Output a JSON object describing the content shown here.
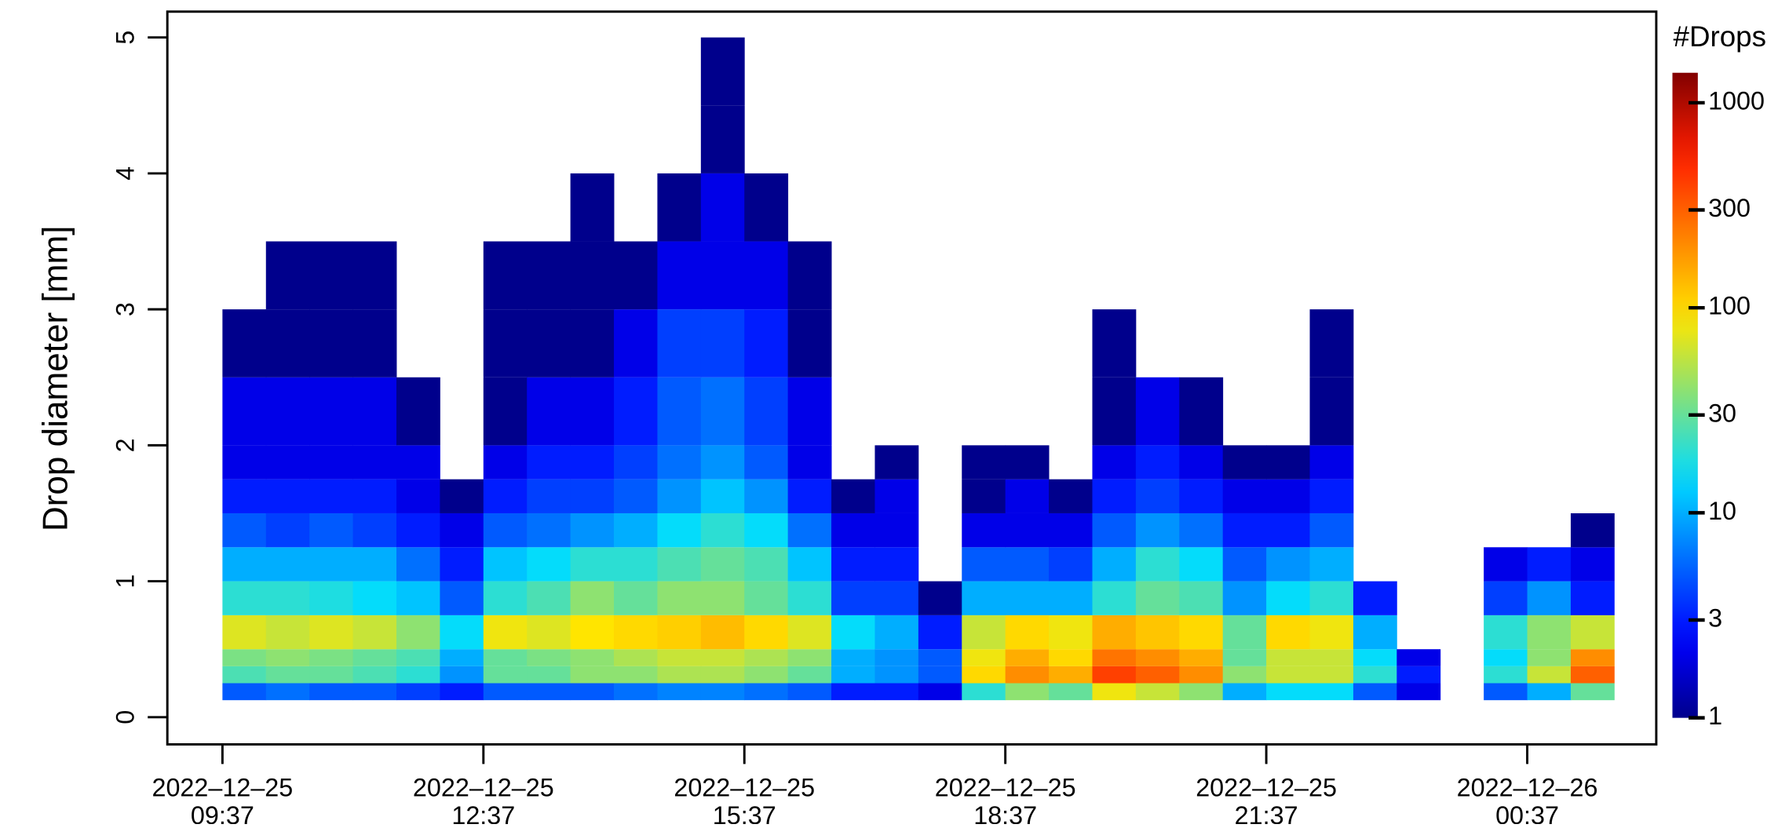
{
  "chart_data": {
    "type": "heatmap",
    "y_label": "Drop diameter [mm]",
    "colorbar_title": "#Drops",
    "xlim": [
      "2022-12-25 08:59",
      "2022-12-26 02:06"
    ],
    "xticks": [
      {
        "value": "2022-12-25 09:37",
        "label": [
          "2022–12–25",
          "09:37"
        ]
      },
      {
        "value": "2022-12-25 12:37",
        "label": [
          "2022–12–25",
          "12:37"
        ]
      },
      {
        "value": "2022-12-25 15:37",
        "label": [
          "2022–12–25",
          "15:37"
        ]
      },
      {
        "value": "2022-12-25 18:37",
        "label": [
          "2022–12–25",
          "18:37"
        ]
      },
      {
        "value": "2022-12-25 21:37",
        "label": [
          "2022–12–25",
          "21:37"
        ]
      },
      {
        "value": "2022-12-26 00:37",
        "label": [
          "2022–12–26",
          "00:37"
        ]
      }
    ],
    "ylim": [
      -0.2,
      5.19
    ],
    "yticks": [
      0,
      1,
      2,
      3,
      4,
      5
    ],
    "zlim": [
      1,
      1400
    ],
    "zticks": [
      1,
      3,
      10,
      30,
      100,
      300,
      1000
    ],
    "log_color": true,
    "bins": [
      0.125,
      0.25,
      0.375,
      0.5,
      0.75,
      1,
      1.25,
      1.5,
      1.75,
      2,
      2.5,
      3,
      3.5,
      4,
      4.5,
      5
    ],
    "x": [
      "2022-12-25 09:37",
      "2022-12-25 10:07",
      "2022-12-25 10:37",
      "2022-12-25 11:07",
      "2022-12-25 11:37",
      "2022-12-25 12:07",
      "2022-12-25 12:37",
      "2022-12-25 13:07",
      "2022-12-25 13:37",
      "2022-12-25 14:07",
      "2022-12-25 14:37",
      "2022-12-25 15:07",
      "2022-12-25 15:37",
      "2022-12-25 16:07",
      "2022-12-25 16:37",
      "2022-12-25 17:07",
      "2022-12-25 17:37",
      "2022-12-25 18:07",
      "2022-12-25 18:37",
      "2022-12-25 19:07",
      "2022-12-25 19:37",
      "2022-12-25 20:07",
      "2022-12-25 20:37",
      "2022-12-25 21:07",
      "2022-12-25 21:37",
      "2022-12-25 22:07",
      "2022-12-25 22:37",
      "2022-12-25 23:07",
      "2022-12-25 23:37",
      "2022-12-26 00:07",
      "2022-12-26 00:37",
      "2022-12-26 01:07"
    ],
    "z": [
      [
        5,
        25,
        35,
        70,
        20,
        10,
        5,
        3,
        2,
        2,
        1,
        null,
        null,
        null,
        null
      ],
      [
        6,
        30,
        40,
        60,
        20,
        10,
        4,
        3,
        2,
        2,
        1,
        1,
        null,
        null,
        null
      ],
      [
        5,
        30,
        35,
        70,
        18,
        10,
        5,
        3,
        2,
        2,
        1,
        1,
        null,
        null,
        null
      ],
      [
        5,
        25,
        30,
        60,
        15,
        10,
        4,
        3,
        2,
        2,
        1,
        1,
        null,
        null,
        null
      ],
      [
        4,
        20,
        25,
        40,
        12,
        6,
        3,
        2,
        2,
        1,
        null,
        null,
        null,
        null,
        null
      ],
      [
        3,
        8,
        10,
        15,
        5,
        3,
        2,
        1,
        null,
        null,
        null,
        null,
        null,
        null,
        null
      ],
      [
        5,
        30,
        30,
        80,
        20,
        12,
        5,
        3,
        2,
        1,
        1,
        1,
        null,
        null,
        null
      ],
      [
        5,
        30,
        35,
        70,
        25,
        15,
        6,
        4,
        3,
        2,
        1,
        1,
        null,
        null,
        null
      ],
      [
        5,
        40,
        40,
        90,
        40,
        20,
        8,
        4,
        3,
        2,
        1,
        1,
        1,
        null,
        null
      ],
      [
        6,
        40,
        50,
        100,
        30,
        20,
        10,
        5,
        4,
        3,
        2,
        1,
        null,
        null,
        null
      ],
      [
        7,
        50,
        60,
        110,
        40,
        25,
        15,
        8,
        6,
        5,
        4,
        2,
        1,
        null,
        null
      ],
      [
        7,
        50,
        60,
        130,
        40,
        30,
        20,
        12,
        8,
        6,
        4,
        2,
        2,
        1,
        1
      ],
      [
        6,
        40,
        50,
        100,
        30,
        25,
        15,
        8,
        5,
        4,
        3,
        2,
        1,
        null,
        null
      ],
      [
        5,
        30,
        40,
        70,
        20,
        12,
        6,
        3,
        2,
        2,
        1,
        1,
        null,
        null,
        null
      ],
      [
        3,
        10,
        10,
        15,
        4,
        3,
        2,
        1,
        null,
        null,
        null,
        null,
        null,
        null,
        null
      ],
      [
        3,
        8,
        8,
        10,
        4,
        3,
        2,
        2,
        1,
        null,
        null,
        null,
        null,
        null,
        null
      ],
      [
        2,
        5,
        5,
        3,
        1,
        null,
        null,
        null,
        null,
        null,
        null,
        null,
        null,
        null,
        null
      ],
      [
        20,
        100,
        80,
        60,
        10,
        5,
        2,
        1,
        1,
        null,
        null,
        null,
        null,
        null,
        null
      ],
      [
        40,
        200,
        150,
        100,
        10,
        5,
        2,
        2,
        1,
        null,
        null,
        null,
        null,
        null,
        null
      ],
      [
        30,
        150,
        100,
        80,
        10,
        4,
        2,
        1,
        null,
        null,
        null,
        null,
        null,
        null,
        null
      ],
      [
        80,
        400,
        250,
        150,
        20,
        10,
        5,
        3,
        2,
        1,
        1,
        null,
        null,
        null,
        null
      ],
      [
        60,
        300,
        200,
        120,
        30,
        20,
        8,
        4,
        3,
        2,
        null,
        null,
        null,
        null,
        null
      ],
      [
        40,
        200,
        150,
        100,
        25,
        15,
        6,
        3,
        2,
        1,
        null,
        null,
        null,
        null,
        null
      ],
      [
        10,
        40,
        30,
        30,
        8,
        5,
        3,
        2,
        1,
        null,
        null,
        null,
        null,
        null,
        null
      ],
      [
        15,
        60,
        60,
        100,
        15,
        8,
        3,
        2,
        1,
        null,
        null,
        null,
        null,
        null,
        null
      ],
      [
        15,
        60,
        60,
        80,
        20,
        10,
        5,
        3,
        2,
        1,
        1,
        null,
        null,
        null,
        null
      ],
      [
        5,
        20,
        15,
        10,
        3,
        null,
        null,
        null,
        null,
        null,
        null,
        null,
        null,
        null,
        null
      ],
      [
        2,
        3,
        2,
        null,
        null,
        null,
        null,
        null,
        null,
        null,
        null,
        null,
        null,
        null,
        null
      ],
      [
        null,
        null,
        null,
        null,
        null,
        null,
        null,
        null,
        null,
        null,
        null,
        null,
        null,
        null,
        null
      ],
      [
        5,
        20,
        15,
        20,
        4,
        2,
        null,
        null,
        null,
        null,
        null,
        null,
        null,
        null,
        null
      ],
      [
        10,
        60,
        40,
        40,
        8,
        3,
        null,
        null,
        null,
        null,
        null,
        null,
        null,
        null,
        null
      ],
      [
        30,
        300,
        200,
        60,
        3,
        2,
        1,
        null,
        null,
        null,
        null,
        null,
        null,
        null,
        null
      ]
    ]
  }
}
